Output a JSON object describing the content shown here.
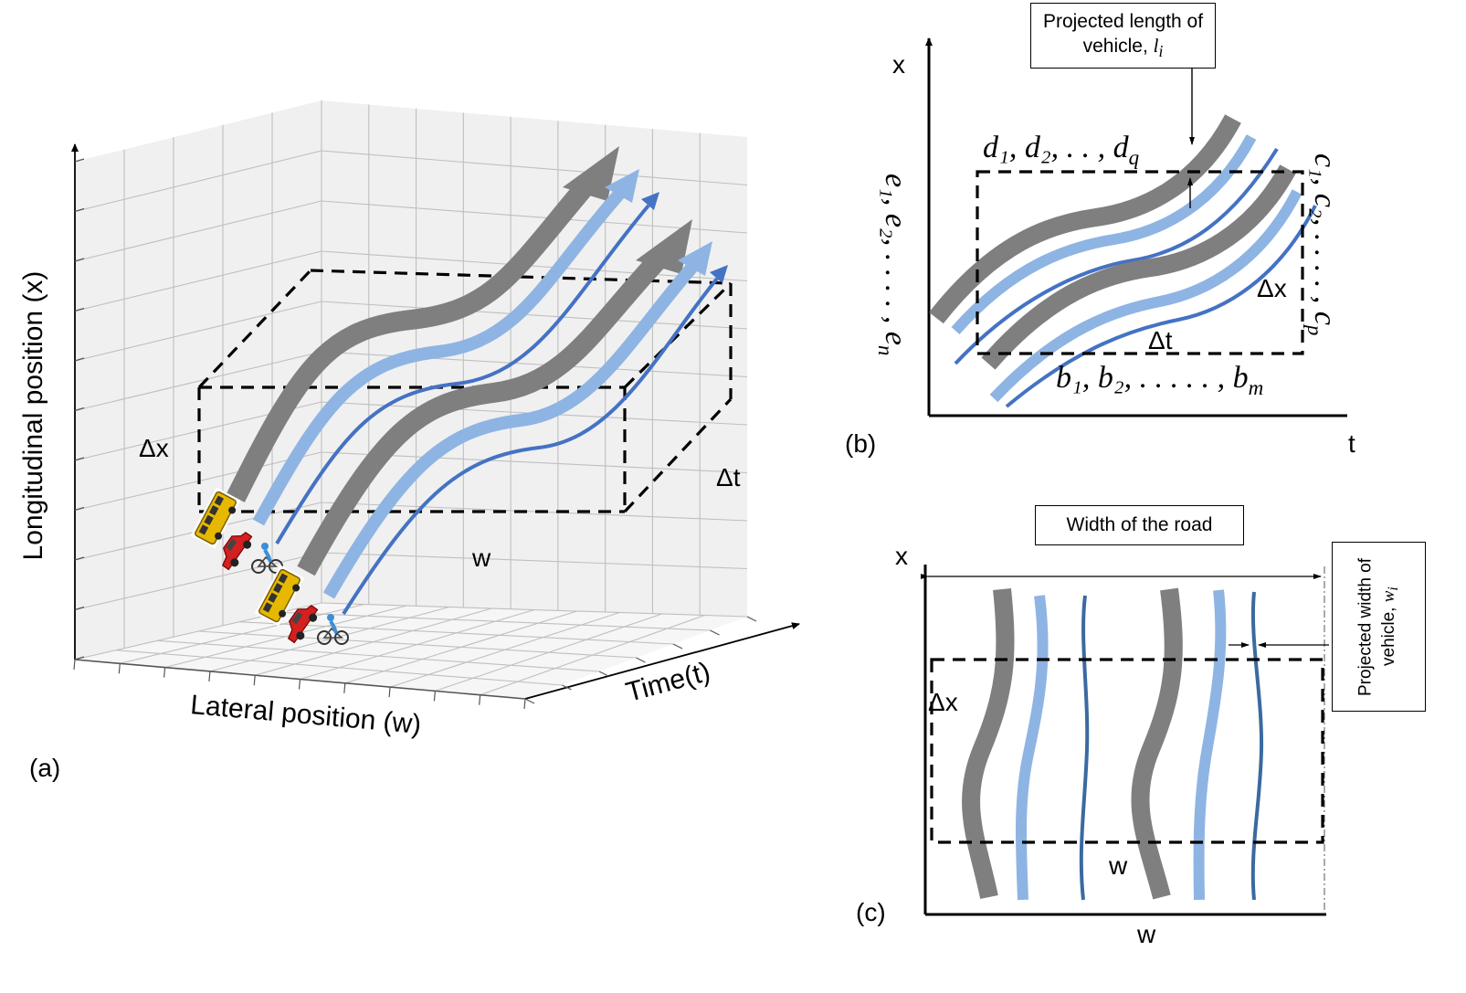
{
  "panel_a": {
    "label": "(a)",
    "y_axis_title": "Longitudinal position (x)",
    "x_axis_title": "Lateral position (w)",
    "z_axis_title": "Time(t)",
    "box_height_label": "Δx",
    "box_depth_label": "Δt",
    "box_width_label": "w"
  },
  "panel_b": {
    "label": "(b)",
    "y_axis_label": "x",
    "x_axis_label": "t",
    "callout": "Projected length of vehicle, ",
    "callout_sym": "l",
    "callout_sub": "i",
    "top_label": "d₁, d₂, . . , d",
    "top_label_sub": "q",
    "left_label": "e₁, e₂, . . . . , e",
    "left_label_sub": "n",
    "right_label": "c₁, c₂, . . . . , c",
    "right_label_sub": "p",
    "bottom_label": "b₁, b₂, . . . . . , b",
    "bottom_label_sub": "m",
    "box_x_label": "Δx",
    "box_t_label": "Δt"
  },
  "panel_c": {
    "label": "(c)",
    "y_axis_label": "x",
    "x_axis_label": "w",
    "top_callout": "Width of the road",
    "side_callout": "Projected width of vehicle, ",
    "side_callout_sym": "w",
    "side_callout_sub": "i",
    "box_x_label": "Δx",
    "box_w_label": "w"
  },
  "colors": {
    "bus_track": "#7f7f7f",
    "car_track": "#8eb4e3",
    "bike_track": "#4472c4",
    "bike_track_c": "#3a6aa0",
    "grid": "#bfbfbf",
    "wall": "#f0f0f0"
  }
}
